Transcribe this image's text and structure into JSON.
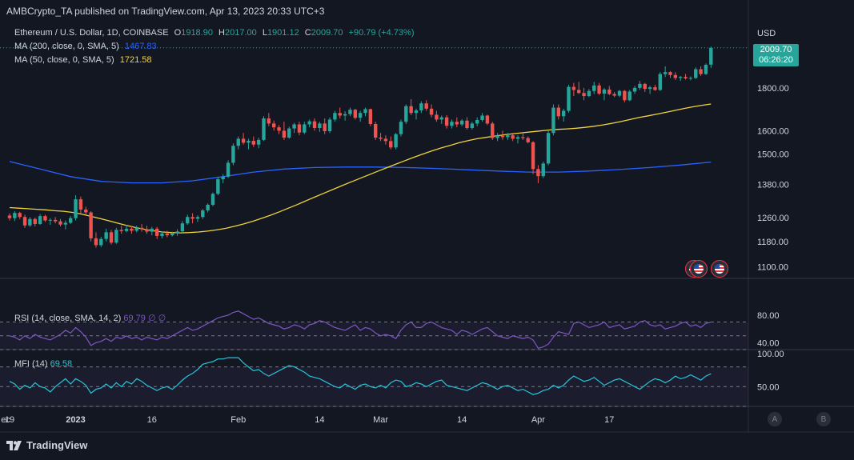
{
  "publisher_line": "AMBCrypto_TA published on TradingView.com, Apr 13, 2023 20:33 UTC+3",
  "footer_brand": "TradingView",
  "currency": "USD",
  "legend": {
    "symbol": "Ethereum / U.S. Dollar, 1D, COINBASE",
    "o_label": "O",
    "o_value": "1918.90",
    "h_label": "H",
    "h_value": "2017.00",
    "l_label": "L",
    "l_value": "1901.12",
    "c_label": "C",
    "c_value": "2009.70",
    "change": "+90.79 (+4.73%)",
    "ma200_label": "MA (200, close, 0, SMA, 5)",
    "ma200_value": "1467.83",
    "ma50_label": "MA (50, close, 0, SMA, 5)",
    "ma50_value": "1721.58"
  },
  "price_tag": {
    "price": "2009.70",
    "countdown": "06:26:20"
  },
  "rsi": {
    "label": "RSI (14, close, SMA, 14, 2)",
    "value": "69.79",
    "extra": "∅ ∅"
  },
  "mfi": {
    "label": "MFI (14)",
    "value": "69.58"
  },
  "scale_buttons": [
    "A",
    "B"
  ],
  "colors": {
    "up": "#26a69a",
    "down": "#ef5350",
    "ma200": "#2962ff",
    "ma50": "#f0d43a",
    "rsi": "#7e57c2",
    "mfi": "#26c6da",
    "bg": "#131722"
  },
  "chart_data": [
    {
      "type": "candlestick",
      "price_axis_ticks": [
        2009.7,
        1800,
        1600,
        1500,
        1380,
        1260,
        1180,
        1100
      ],
      "price_axis_labels": [
        "2009.70",
        "1800.00",
        "1600.00",
        "1500.00",
        "1380.00",
        "1260.00",
        "1180.00",
        "1100.00"
      ],
      "ylim": [
        1080,
        2090
      ],
      "y_scale": "log",
      "date_axis_labels": [
        "ec",
        "19",
        "2023",
        "16",
        "Feb",
        "14",
        "Mar",
        "14",
        "Apr",
        "17"
      ],
      "date_axis_positions": [
        -17,
        0,
        13,
        28,
        45,
        61,
        73,
        89,
        104,
        118
      ],
      "candles": [
        [
          1267,
          1275,
          1250,
          1258
        ],
        [
          1258,
          1282,
          1248,
          1276
        ],
        [
          1276,
          1280,
          1255,
          1262
        ],
        [
          1262,
          1270,
          1225,
          1233
        ],
        [
          1233,
          1262,
          1228,
          1255
        ],
        [
          1255,
          1260,
          1230,
          1238
        ],
        [
          1238,
          1272,
          1235,
          1265
        ],
        [
          1265,
          1270,
          1245,
          1250
        ],
        [
          1250,
          1258,
          1235,
          1252
        ],
        [
          1252,
          1262,
          1240,
          1247
        ],
        [
          1247,
          1255,
          1230,
          1236
        ],
        [
          1236,
          1250,
          1220,
          1242
        ],
        [
          1242,
          1265,
          1238,
          1258
        ],
        [
          1258,
          1340,
          1250,
          1325
        ],
        [
          1325,
          1335,
          1275,
          1288
        ],
        [
          1288,
          1298,
          1270,
          1278
        ],
        [
          1278,
          1282,
          1180,
          1190
        ],
        [
          1190,
          1210,
          1160,
          1168
        ],
        [
          1168,
          1195,
          1162,
          1188
        ],
        [
          1188,
          1222,
          1180,
          1210
        ],
        [
          1210,
          1218,
          1170,
          1176
        ],
        [
          1176,
          1225,
          1172,
          1218
        ],
        [
          1218,
          1232,
          1205,
          1214
        ],
        [
          1214,
          1235,
          1210,
          1222
        ],
        [
          1222,
          1230,
          1205,
          1215
        ],
        [
          1215,
          1232,
          1210,
          1225
        ],
        [
          1225,
          1238,
          1212,
          1220
        ],
        [
          1220,
          1232,
          1205,
          1212
        ],
        [
          1212,
          1228,
          1200,
          1222
        ],
        [
          1222,
          1228,
          1188,
          1198
        ],
        [
          1198,
          1212,
          1190,
          1206
        ],
        [
          1206,
          1215,
          1194,
          1200
        ],
        [
          1200,
          1212,
          1196,
          1208
        ],
        [
          1208,
          1220,
          1198,
          1213
        ],
        [
          1213,
          1248,
          1208,
          1240
        ],
        [
          1240,
          1270,
          1235,
          1262
        ],
        [
          1262,
          1275,
          1240,
          1256
        ],
        [
          1256,
          1268,
          1245,
          1262
        ],
        [
          1262,
          1290,
          1255,
          1285
        ],
        [
          1285,
          1310,
          1278,
          1305
        ],
        [
          1305,
          1350,
          1300,
          1345
        ],
        [
          1345,
          1410,
          1340,
          1400
        ],
        [
          1400,
          1420,
          1385,
          1410
        ],
        [
          1410,
          1475,
          1405,
          1465
        ],
        [
          1465,
          1545,
          1455,
          1535
        ],
        [
          1535,
          1575,
          1520,
          1565
        ],
        [
          1565,
          1590,
          1540,
          1548
        ],
        [
          1548,
          1565,
          1520,
          1556
        ],
        [
          1556,
          1575,
          1530,
          1540
        ],
        [
          1540,
          1570,
          1525,
          1560
        ],
        [
          1560,
          1665,
          1555,
          1655
        ],
        [
          1655,
          1680,
          1620,
          1632
        ],
        [
          1632,
          1645,
          1600,
          1615
        ],
        [
          1615,
          1625,
          1585,
          1600
        ],
        [
          1600,
          1640,
          1560,
          1570
        ],
        [
          1570,
          1618,
          1565,
          1610
        ],
        [
          1610,
          1635,
          1590,
          1628
        ],
        [
          1628,
          1640,
          1580,
          1592
        ],
        [
          1592,
          1640,
          1585,
          1628
        ],
        [
          1628,
          1650,
          1615,
          1642
        ],
        [
          1642,
          1655,
          1600,
          1612
        ],
        [
          1612,
          1640,
          1595,
          1632
        ],
        [
          1632,
          1655,
          1585,
          1598
        ],
        [
          1598,
          1660,
          1590,
          1650
        ],
        [
          1650,
          1690,
          1640,
          1680
        ],
        [
          1680,
          1705,
          1655,
          1668
        ],
        [
          1668,
          1688,
          1645,
          1675
        ],
        [
          1675,
          1705,
          1665,
          1695
        ],
        [
          1695,
          1700,
          1650,
          1658
        ],
        [
          1658,
          1690,
          1640,
          1680
        ],
        [
          1680,
          1705,
          1665,
          1698
        ],
        [
          1698,
          1700,
          1620,
          1630
        ],
        [
          1630,
          1640,
          1560,
          1570
        ],
        [
          1570,
          1590,
          1555,
          1565
        ],
        [
          1565,
          1580,
          1540,
          1555
        ],
        [
          1555,
          1575,
          1520,
          1528
        ],
        [
          1528,
          1590,
          1520,
          1585
        ],
        [
          1585,
          1650,
          1575,
          1640
        ],
        [
          1640,
          1720,
          1630,
          1712
        ],
        [
          1712,
          1745,
          1670,
          1680
        ],
        [
          1680,
          1700,
          1650,
          1692
        ],
        [
          1692,
          1735,
          1680,
          1725
        ],
        [
          1725,
          1740,
          1690,
          1700
        ],
        [
          1700,
          1720,
          1660,
          1672
        ],
        [
          1672,
          1690,
          1640,
          1650
        ],
        [
          1650,
          1668,
          1630,
          1660
        ],
        [
          1660,
          1670,
          1610,
          1622
        ],
        [
          1622,
          1650,
          1610,
          1640
        ],
        [
          1640,
          1660,
          1615,
          1628
        ],
        [
          1628,
          1652,
          1620,
          1645
        ],
        [
          1645,
          1660,
          1605,
          1612
        ],
        [
          1612,
          1640,
          1605,
          1632
        ],
        [
          1632,
          1660,
          1620,
          1648
        ],
        [
          1648,
          1680,
          1640,
          1668
        ],
        [
          1668,
          1672,
          1625,
          1632
        ],
        [
          1632,
          1640,
          1560,
          1568
        ],
        [
          1568,
          1590,
          1555,
          1578
        ],
        [
          1578,
          1600,
          1560,
          1572
        ],
        [
          1572,
          1590,
          1560,
          1580
        ],
        [
          1580,
          1585,
          1555,
          1565
        ],
        [
          1565,
          1580,
          1545,
          1572
        ],
        [
          1572,
          1590,
          1560,
          1568
        ],
        [
          1568,
          1575,
          1545,
          1550
        ],
        [
          1550,
          1555,
          1420,
          1440
        ],
        [
          1440,
          1455,
          1385,
          1412
        ],
        [
          1412,
          1470,
          1405,
          1462
        ],
        [
          1462,
          1600,
          1455,
          1590
        ],
        [
          1590,
          1720,
          1580,
          1705
        ],
        [
          1705,
          1720,
          1650,
          1665
        ],
        [
          1665,
          1700,
          1640,
          1690
        ],
        [
          1690,
          1815,
          1682,
          1805
        ],
        [
          1805,
          1825,
          1760,
          1790
        ],
        [
          1790,
          1830,
          1770,
          1775
        ],
        [
          1775,
          1800,
          1740,
          1760
        ],
        [
          1760,
          1795,
          1755,
          1785
        ],
        [
          1785,
          1830,
          1770,
          1812
        ],
        [
          1812,
          1825,
          1765,
          1772
        ],
        [
          1772,
          1800,
          1740,
          1792
        ],
        [
          1792,
          1810,
          1765,
          1770
        ],
        [
          1770,
          1780,
          1755,
          1762
        ],
        [
          1762,
          1790,
          1755,
          1785
        ],
        [
          1785,
          1790,
          1730,
          1740
        ],
        [
          1740,
          1790,
          1735,
          1782
        ],
        [
          1782,
          1810,
          1770,
          1800
        ],
        [
          1800,
          1835,
          1790,
          1820
        ],
        [
          1820,
          1825,
          1780,
          1795
        ],
        [
          1795,
          1810,
          1770,
          1803
        ],
        [
          1803,
          1815,
          1785,
          1790
        ],
        [
          1790,
          1880,
          1785,
          1870
        ],
        [
          1870,
          1910,
          1855,
          1880
        ],
        [
          1880,
          1885,
          1850,
          1865
        ],
        [
          1865,
          1880,
          1840,
          1850
        ],
        [
          1850,
          1860,
          1835,
          1855
        ],
        [
          1855,
          1870,
          1842,
          1848
        ],
        [
          1848,
          1858,
          1838,
          1850
        ],
        [
          1850,
          1905,
          1845,
          1895
        ],
        [
          1895,
          1910,
          1860,
          1870
        ],
        [
          1870,
          1925,
          1865,
          1918
        ],
        [
          1918.9,
          2017,
          1901.12,
          2009.7
        ]
      ],
      "ma50": [
        1295,
        1293,
        1291,
        1289,
        1287,
        1284,
        1282,
        1278,
        1272,
        1265,
        1257,
        1249,
        1241,
        1233,
        1226,
        1220,
        1215,
        1211,
        1209,
        1208,
        1209,
        1211,
        1214,
        1218,
        1223,
        1230,
        1238,
        1247,
        1257,
        1268,
        1280,
        1293,
        1306,
        1320,
        1334,
        1348,
        1362,
        1376,
        1390,
        1404,
        1418,
        1432,
        1446,
        1460,
        1474,
        1488,
        1501,
        1514,
        1526,
        1537,
        1548,
        1557,
        1565,
        1571,
        1577,
        1582,
        1587,
        1591,
        1595,
        1599,
        1603,
        1606,
        1608,
        1611,
        1615,
        1620,
        1626,
        1633,
        1641,
        1650,
        1659,
        1667,
        1675,
        1683,
        1692,
        1701,
        1709,
        1716,
        1722
      ],
      "ma200": [
        1470,
        1440,
        1410,
        1392,
        1386,
        1386,
        1394,
        1410,
        1428,
        1440,
        1446,
        1448,
        1448,
        1446,
        1442,
        1437,
        1432,
        1428,
        1428,
        1432,
        1438,
        1446,
        1456,
        1467.83
      ]
    },
    {
      "type": "line",
      "name": "RSI",
      "ylim": [
        30,
        95
      ],
      "axis_ticks": [
        80,
        40
      ],
      "axis_labels": [
        "80.00",
        "40.00"
      ],
      "bands": [
        70,
        50,
        30
      ],
      "values": [
        50,
        48,
        44,
        50,
        46,
        52,
        48,
        46,
        44,
        48,
        52,
        58,
        54,
        62,
        56,
        48,
        36,
        40,
        42,
        46,
        42,
        48,
        46,
        50,
        46,
        48,
        44,
        48,
        46,
        44,
        48,
        46,
        50,
        54,
        58,
        62,
        58,
        60,
        64,
        68,
        72,
        76,
        78,
        80,
        84,
        86,
        82,
        78,
        74,
        76,
        72,
        68,
        66,
        64,
        60,
        62,
        66,
        64,
        60,
        66,
        68,
        72,
        70,
        66,
        62,
        60,
        58,
        62,
        66,
        58,
        62,
        60,
        54,
        50,
        52,
        50,
        46,
        58,
        66,
        70,
        62,
        62,
        68,
        70,
        66,
        62,
        60,
        58,
        52,
        58,
        56,
        52,
        56,
        60,
        62,
        56,
        50,
        48,
        46,
        50,
        48,
        46,
        48,
        44,
        32,
        34,
        38,
        48,
        56,
        54,
        52,
        68,
        70,
        66,
        62,
        64,
        66,
        70,
        62,
        64,
        66,
        60,
        62,
        64,
        70,
        72,
        66,
        64,
        66,
        60,
        62,
        64,
        68,
        70,
        64,
        66,
        62,
        68,
        69.79
      ]
    },
    {
      "type": "line",
      "name": "MFI",
      "ylim": [
        20,
        105
      ],
      "axis_ticks": [
        100,
        50
      ],
      "axis_labels": [
        "100.00",
        "50.00"
      ],
      "bands": [
        80,
        50,
        20
      ],
      "values": [
        58,
        54,
        46,
        52,
        48,
        56,
        50,
        48,
        42,
        50,
        56,
        62,
        54,
        62,
        58,
        52,
        40,
        46,
        48,
        54,
        48,
        56,
        50,
        58,
        54,
        62,
        58,
        52,
        48,
        44,
        48,
        50,
        46,
        52,
        60,
        66,
        70,
        76,
        84,
        86,
        88,
        92,
        92,
        94,
        94,
        94,
        86,
        80,
        74,
        76,
        70,
        66,
        70,
        74,
        78,
        82,
        80,
        76,
        72,
        66,
        64,
        62,
        58,
        54,
        50,
        48,
        54,
        50,
        46,
        52,
        54,
        50,
        48,
        52,
        48,
        56,
        60,
        58,
        50,
        52,
        56,
        54,
        50,
        54,
        58,
        60,
        52,
        50,
        48,
        46,
        44,
        48,
        52,
        56,
        54,
        50,
        46,
        50,
        52,
        48,
        44,
        46,
        42,
        38,
        40,
        44,
        46,
        52,
        48,
        52,
        60,
        66,
        62,
        58,
        60,
        64,
        58,
        52,
        56,
        60,
        62,
        58,
        54,
        50,
        46,
        52,
        58,
        62,
        60,
        56,
        60,
        66,
        62,
        64,
        68,
        64,
        60,
        66,
        69.58
      ]
    }
  ]
}
